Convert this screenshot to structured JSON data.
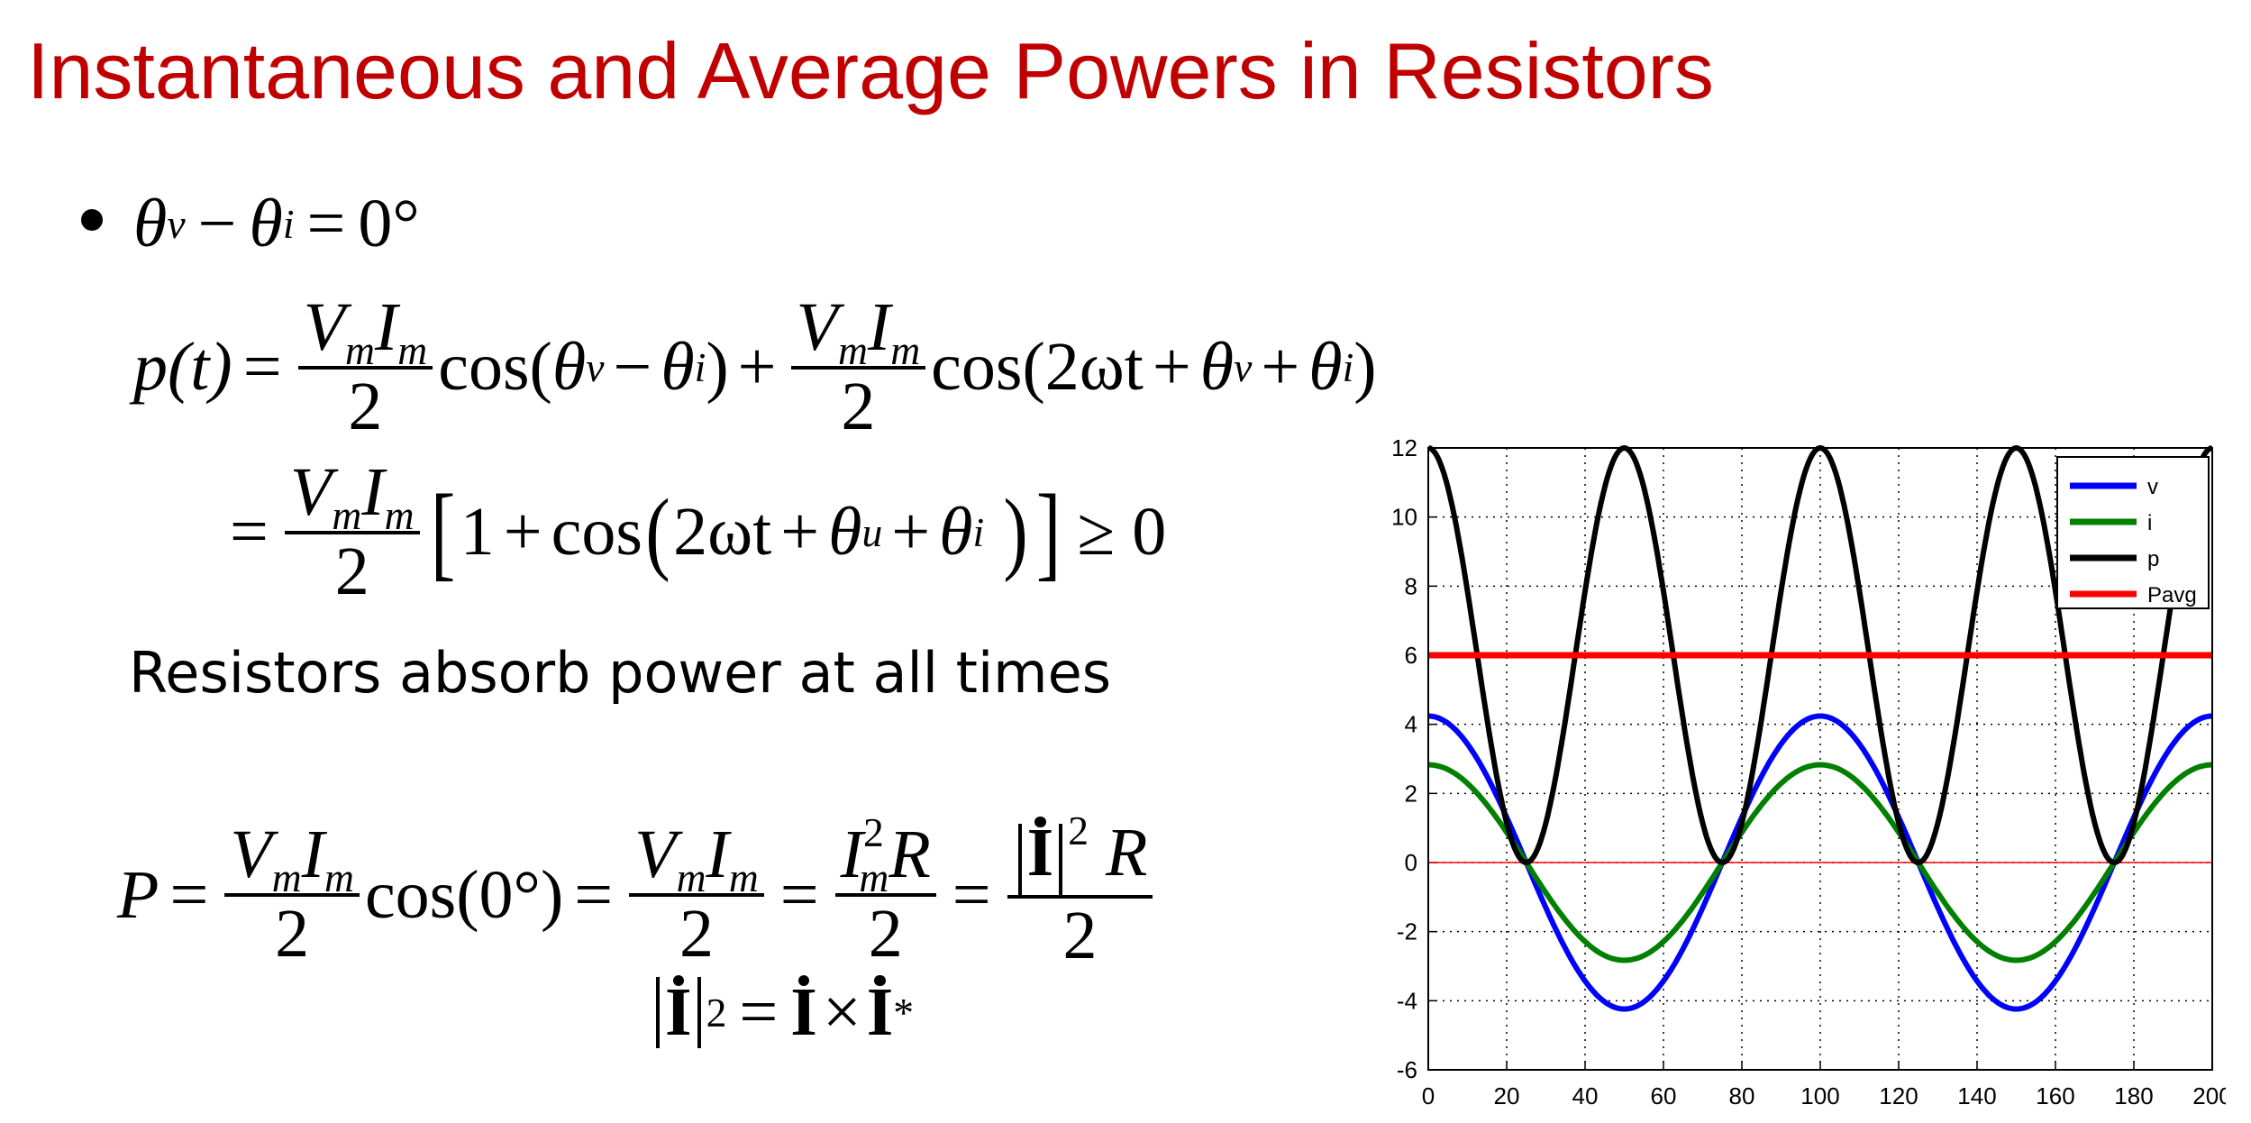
{
  "title": "Instantaneous and Average Powers in Resistors",
  "math": {
    "theta": "θ",
    "v": "v",
    "i": "i",
    "u": "u",
    "minus": "−",
    "plus": "+",
    "equals": "=",
    "zero_deg": "0°",
    "p_of_t": "p(t)",
    "Vm": "V",
    "Im": "I",
    "m": "m",
    "two": "2",
    "cos_open": "cos(",
    "cos": "cos",
    "close": ")",
    "two_omega_t": "2ωt",
    "one": "1",
    "geq_zero": "≥ 0",
    "P": "P",
    "cos_zero": "cos(0°)",
    "R": "R",
    "I_bold": "I",
    "sq": "2",
    "times": "×",
    "star": "*"
  },
  "note": "Resistors absorb power at all times",
  "chart_data": {
    "type": "line",
    "x_range": [
      0,
      200
    ],
    "ylim": [
      -6,
      12
    ],
    "xticks": [
      0,
      20,
      40,
      60,
      80,
      100,
      120,
      140,
      160,
      180,
      200
    ],
    "yticks": [
      -6,
      -4,
      -2,
      0,
      2,
      4,
      6,
      8,
      10,
      12
    ],
    "grid": true,
    "legend_position": "top-right",
    "series": [
      {
        "name": "v",
        "color": "#0000ff",
        "formula": "4.24*cos(2*pi*x/100)"
      },
      {
        "name": "i",
        "color": "#008000",
        "formula": "2.83*cos(2*pi*x/100)"
      },
      {
        "name": "p",
        "color": "#000000",
        "formula": "6+6*cos(4*pi*x/100)"
      },
      {
        "name": "Pavg",
        "color": "#ff0000",
        "formula": "6"
      }
    ]
  }
}
